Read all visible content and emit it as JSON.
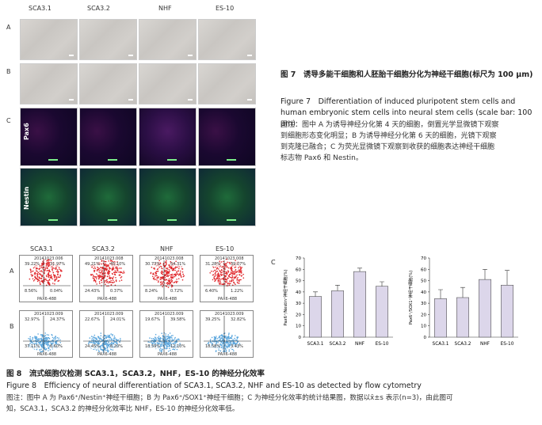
{
  "figure7": {
    "columns": [
      "SCA3.1",
      "SCA3.2",
      "NHF",
      "ES-10"
    ],
    "rows": [
      "A",
      "B",
      "C"
    ],
    "stains": [
      "Pax6",
      "Nestin"
    ],
    "caption_cn": "图 7　诱导多能干细胞和人胚胎干细胞分化为神经干细胞(标尺为 100 μm)",
    "caption_en": "Figure 7　Differentiation of induced pluripotent stem cells and human embryonic stem cells into neural stem cells (scale bar: 100 μm)",
    "note_lines": [
      "图注：图中 A 为诱导神经分化第 4 天的细胞，倒置光学显微镜下观察",
      "到细胞形态变化明显；B 为诱导神经分化第 6 天的细胞，光镜下观察",
      "到克隆已融合；C 为荧光显微镜下观察到收获的细胞表达神经干细胞",
      "标志物 Pax6 和 Nestin。"
    ]
  },
  "figure8": {
    "columns": [
      "SCA3.1",
      "SCA3.2",
      "NHF",
      "ES-10"
    ],
    "rows": [
      "A",
      "B"
    ],
    "panel_c_label": "C",
    "flow": {
      "A": [
        {
          "id": "20141023.006",
          "ul": "39.22%",
          "ur": "31.97%",
          "ll": "8.56%",
          "lr": "0.04%"
        },
        {
          "id": "20141023.008",
          "ul": "49.21%",
          "ur": "45.10%",
          "ll": "24.43%",
          "lr": "0.37%"
        },
        {
          "id": "20141023.008",
          "ul": "30.73%",
          "ur": "54.31%",
          "ll": "8.24%",
          "lr": "0.72%"
        },
        {
          "id": "20141023.008",
          "ul": "31.28%",
          "ur": "39.07%",
          "ll": "6.40%",
          "lr": "1.22%"
        }
      ],
      "B": [
        {
          "id": "20141023.009",
          "ul": "32.97%",
          "ur": "24.37%",
          "ll": "37.11%",
          "lr": "6.60%"
        },
        {
          "id": "20141023.009",
          "ul": "22.67%",
          "ur": "24.01%",
          "ll": "24.45%",
          "lr": "6.20%"
        },
        {
          "id": "20141023.009",
          "ul": "19.67%",
          "ur": "39.58%",
          "ll": "18.59%",
          "lr": "12.10%"
        },
        {
          "id": "20141023.009",
          "ul": "39.25%",
          "ur": "32.82%",
          "ll": "18.58%",
          "lr": "3.43%"
        }
      ],
      "axis_label_x": "PAX6-488",
      "axis_label_y": "Nestin-APC"
    },
    "caption_cn": "图 8　流式细胞仪检测 SCA3.1，SCA3.2，NHF，ES-10 的神经分化效率",
    "caption_en": "Figure 8　Efficiency of neural differentiation of SCA3.1, SCA3.2, NHF and ES-10 as detected by flow cytometry",
    "note_line1": "图注：图中 A 为 Pax6⁺/Nestin⁺神经干细胞；B 为 Pax6⁺/SOX1⁺神经干细胞；C 为神经分化效率的统计结果图，数据以x̄±s 表示(n=3)，由此图可",
    "note_line2": "知，SCA3.1，SCA3.2 的神经分化效率比 NHF，ES-10 的神经分化效率低。"
  },
  "chart_data": [
    {
      "type": "bar",
      "categories": [
        "SCA3.1",
        "SCA3.2",
        "NHF",
        "ES-10"
      ],
      "values": [
        36,
        41,
        58,
        45
      ],
      "errors": [
        4,
        5,
        3,
        4
      ],
      "ylabel": "Pax6⁺/Nestin⁺神经干细胞(%)",
      "ylim": [
        0,
        70
      ],
      "yticks": [
        0,
        10,
        20,
        30,
        40,
        50,
        60,
        70
      ],
      "bar_color": "#dcd6ea"
    },
    {
      "type": "bar",
      "categories": [
        "SCA3.1",
        "SCA3.2",
        "NHF",
        "ES-10"
      ],
      "values": [
        34,
        35,
        51,
        46
      ],
      "errors": [
        8,
        9,
        9,
        13
      ],
      "ylabel": "Pax6⁺/SOX1⁺神经干细胞(%)",
      "ylim": [
        0,
        70
      ],
      "yticks": [
        0,
        10,
        20,
        30,
        40,
        50,
        60,
        70
      ],
      "bar_color": "#dcd6ea"
    }
  ]
}
